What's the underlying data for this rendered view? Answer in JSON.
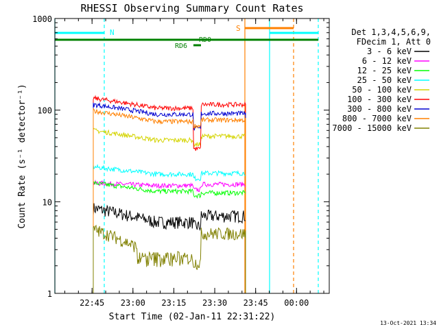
{
  "chart_data": {
    "type": "line",
    "title": "RHESSI Observing Summary Count Rates",
    "xlabel": "Start Time (02-Jan-11 22:31:22)",
    "ylabel": "Count Rate (s⁻¹ detector⁻¹)",
    "y_scale": "log",
    "ylim": [
      1,
      1000
    ],
    "xlim": [
      "22:31:22",
      "00:12:00"
    ],
    "x_ticks": [
      "22:45",
      "23:00",
      "23:15",
      "23:30",
      "23:45",
      "00:00"
    ],
    "y_ticks": [
      "1",
      "10",
      "100",
      "1000"
    ],
    "legend_header": [
      "Det 1,3,4,5,6,9,",
      "FDecim 1, Att 0"
    ],
    "legend_position": "right",
    "series": [
      {
        "name": "3 - 6 keV",
        "color": "#000000",
        "level_pre": 8.5,
        "level_mid": 6,
        "level_post": 7
      },
      {
        "name": "6 - 12 keV",
        "color": "#ff00ff",
        "level_pre": 16,
        "level_mid": 15,
        "level_post": 15.5
      },
      {
        "name": "12 - 25 keV",
        "color": "#00ff00",
        "level_pre": 16,
        "level_mid": 13,
        "level_post": 12.5
      },
      {
        "name": "25 - 50 keV",
        "color": "#00ffff",
        "level_pre": 24,
        "level_mid": 20,
        "level_post": 20.5
      },
      {
        "name": "50 - 100 keV",
        "color": "#d4d400",
        "level_pre": 60,
        "level_mid": 47,
        "level_post": 52
      },
      {
        "name": "100 - 300 keV",
        "color": "#ff0000",
        "level_pre": 135,
        "level_mid": 105,
        "level_post": 115
      },
      {
        "name": "300 - 800 keV",
        "color": "#0000d0",
        "level_pre": 115,
        "level_mid": 90,
        "level_post": 92
      },
      {
        "name": "800 - 7000 keV",
        "color": "#ff8000",
        "level_pre": 98,
        "level_mid": 75,
        "level_post": 78
      },
      {
        "name": "7000 - 15000 keV",
        "color": "#808000",
        "level_pre": 5,
        "level_mid": 2.4,
        "level_post": 4.5
      }
    ],
    "annotations": {
      "night_label": "N",
      "saa_label": "S",
      "rd0_label": "RD0",
      "rd6_label": "RD6"
    },
    "timestamp": "13-Oct-2021 13:34"
  }
}
